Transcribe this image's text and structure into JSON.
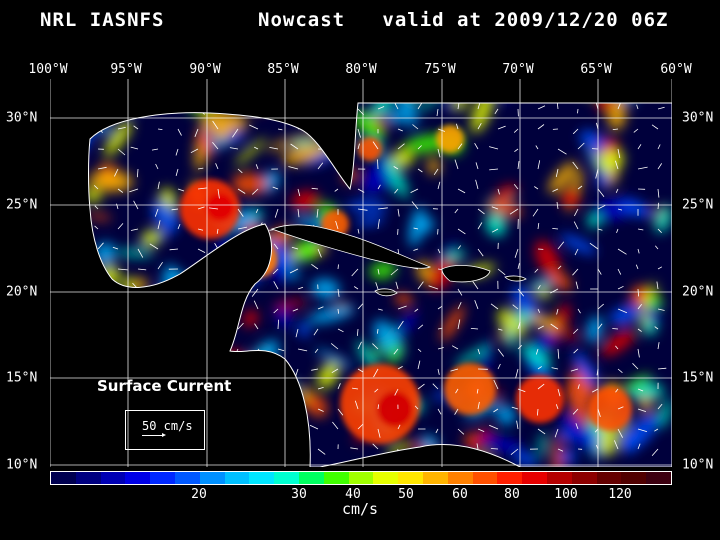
{
  "header": {
    "title_left": "NRL IASNFS",
    "title_right": "Nowcast   valid at 2009/12/20 06Z"
  },
  "axes": {
    "longitudes": [
      "100°W",
      "95°W",
      "90°W",
      "85°W",
      "80°W",
      "75°W",
      "70°W",
      "65°W",
      "60°W"
    ],
    "latitudes": [
      "30°N",
      "25°N",
      "20°N",
      "15°N",
      "10°N"
    ]
  },
  "legend": {
    "title": "Surface Current",
    "reference_vector_label": "50 cm/s"
  },
  "colorbar": {
    "unit": "cm/s",
    "labels": [
      "20",
      "30",
      "40",
      "50",
      "60",
      "80",
      "100",
      "120"
    ],
    "colors": [
      "#000050",
      "#000080",
      "#0000b4",
      "#0000e6",
      "#0028ff",
      "#0058ff",
      "#0090ff",
      "#00c0ff",
      "#00e6ff",
      "#00ffd0",
      "#00ff60",
      "#40ff00",
      "#a0ff00",
      "#e6ff00",
      "#ffe600",
      "#ffb400",
      "#ff8000",
      "#ff5000",
      "#ff1e00",
      "#e60000",
      "#b40000",
      "#8c0000",
      "#640000",
      "#500000",
      "#3c0010"
    ]
  },
  "colors": {
    "background": "#000000",
    "ocean_base": "#00003c",
    "land": "#000000",
    "coast": "#ffffff"
  }
}
